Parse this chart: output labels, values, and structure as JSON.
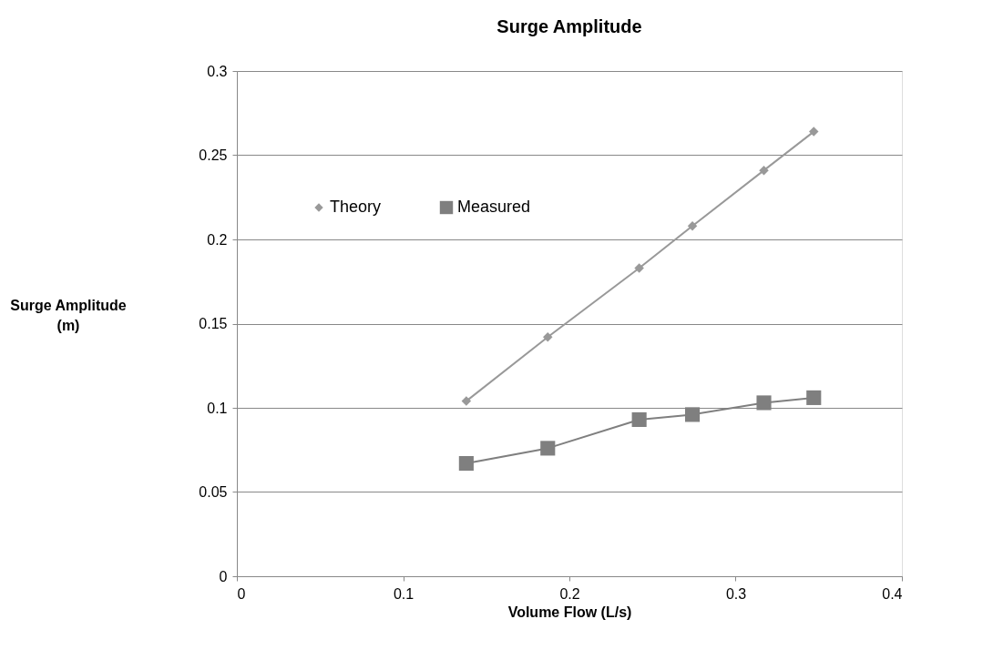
{
  "chart_data": {
    "type": "line",
    "title": "Surge Amplitude",
    "xlabel": "Volume Flow (L/s)",
    "ylabel": "Surge Amplitude (m)",
    "x": [
      0.138,
      0.187,
      0.242,
      0.274,
      0.317,
      0.347
    ],
    "series": [
      {
        "name": "Theory",
        "color": "#999999",
        "marker": "diamond",
        "values": [
          0.104,
          0.142,
          0.183,
          0.208,
          0.241,
          0.264
        ]
      },
      {
        "name": "Measured",
        "color": "#7f7f7f",
        "marker": "square",
        "values": [
          0.067,
          0.076,
          0.093,
          0.096,
          0.103,
          0.106
        ]
      }
    ],
    "xlim": [
      0,
      0.4
    ],
    "xticks": [
      0,
      0.1,
      0.2,
      0.3,
      0.4
    ],
    "ylim": [
      0,
      0.3
    ],
    "yticks": [
      0,
      0.05,
      0.1,
      0.15,
      0.2,
      0.25,
      0.3
    ],
    "grid": "y",
    "legend": "top left"
  }
}
